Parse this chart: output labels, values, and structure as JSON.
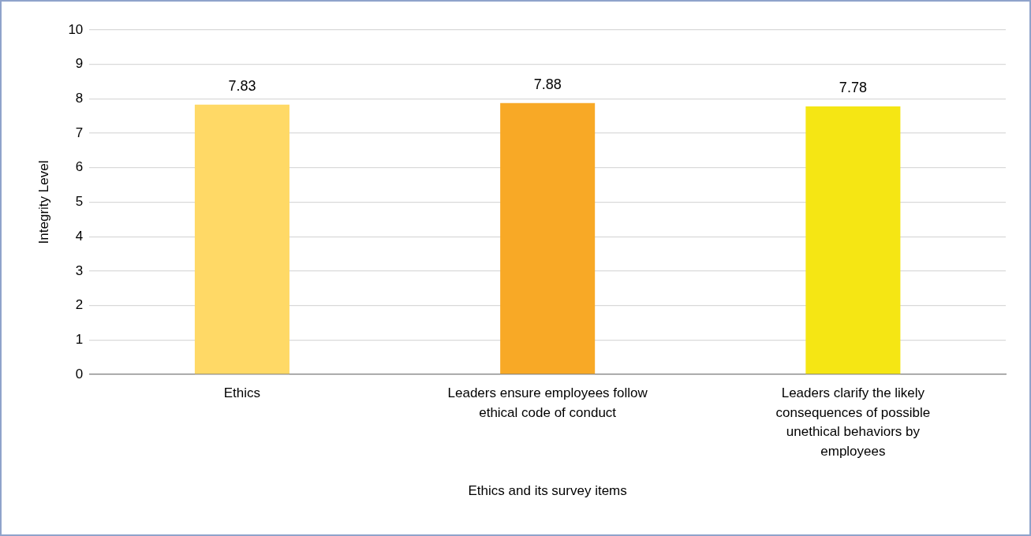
{
  "chart_data": {
    "type": "bar",
    "xlabel": "Ethics and its survey items",
    "ylabel": "Integrity Level",
    "categories": [
      "Ethics",
      "Leaders ensure employees follow ethical code of conduct",
      "Leaders clarify the likely consequences of possible unethical behaviors by employees"
    ],
    "values": [
      7.83,
      7.88,
      7.78
    ],
    "colors": [
      "#ffd966",
      "#f8a926",
      "#f5e614"
    ],
    "ylim": [
      0,
      10
    ],
    "yticks": [
      0,
      1,
      2,
      3,
      4,
      5,
      6,
      7,
      8,
      9,
      10
    ],
    "grid": "y",
    "data_labels": true,
    "legend": false
  }
}
